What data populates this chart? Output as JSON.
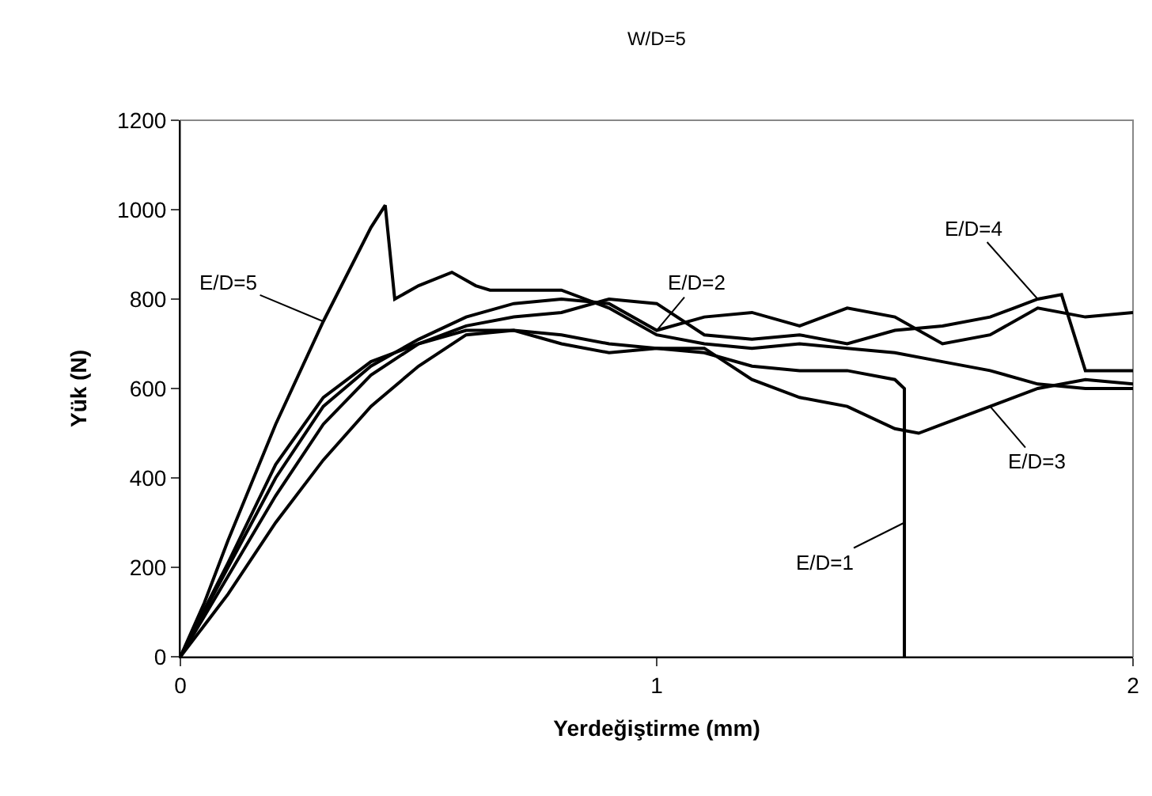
{
  "chart_data": {
    "type": "line",
    "title": "W/D=5",
    "xlabel": "Yerdeğiştirme (mm)",
    "ylabel": "Yük (N)",
    "xlim": [
      0,
      2
    ],
    "xticks": [
      0,
      1,
      2
    ],
    "ylim": [
      0,
      1200
    ],
    "yticks": [
      0,
      200,
      400,
      600,
      800,
      1000,
      1200
    ],
    "grid": false,
    "marker": "none",
    "line_style": "solid",
    "series": [
      {
        "color": "#000000",
        "x": [
          0,
          0.05,
          0.1,
          0.2,
          0.3,
          0.4,
          0.43,
          0.45,
          0.5,
          0.57,
          0.62,
          0.65,
          0.8,
          0.9,
          1.0,
          1.1,
          1.2,
          1.3,
          1.4,
          1.5,
          1.6,
          1.7,
          1.8,
          1.9,
          2.0
        ],
        "values": [
          0,
          120,
          260,
          520,
          750,
          960,
          1010,
          800,
          830,
          860,
          830,
          820,
          820,
          780,
          720,
          700,
          690,
          700,
          690,
          680,
          660,
          640,
          610,
          600,
          600
        ]
      },
      {
        "color": "#000000",
        "x": [
          0,
          0.1,
          0.2,
          0.3,
          0.4,
          0.5,
          0.6,
          0.7,
          0.8,
          0.9,
          1.0,
          1.1,
          1.2,
          1.3,
          1.4,
          1.5,
          1.6,
          1.7,
          1.8,
          1.9,
          2.0
        ],
        "values": [
          0,
          200,
          400,
          560,
          650,
          710,
          760,
          790,
          800,
          790,
          730,
          760,
          770,
          740,
          780,
          760,
          700,
          720,
          780,
          760,
          770
        ]
      },
      {
        "color": "#000000",
        "x": [
          0,
          0.1,
          0.2,
          0.3,
          0.4,
          0.5,
          0.6,
          0.7,
          0.8,
          0.9,
          1.0,
          1.1,
          1.2,
          1.3,
          1.4,
          1.5,
          1.6,
          1.7,
          1.75,
          1.8,
          1.85,
          1.9,
          2.0
        ],
        "values": [
          0,
          180,
          360,
          520,
          630,
          700,
          740,
          760,
          770,
          800,
          790,
          720,
          710,
          720,
          700,
          730,
          740,
          760,
          780,
          800,
          810,
          640,
          640
        ]
      },
      {
        "color": "#000000",
        "x": [
          0,
          0.1,
          0.2,
          0.3,
          0.4,
          0.5,
          0.6,
          0.7,
          0.8,
          0.9,
          1.0,
          1.1,
          1.2,
          1.3,
          1.4,
          1.5,
          1.55,
          1.6,
          1.7,
          1.8,
          1.9,
          2.0
        ],
        "values": [
          0,
          140,
          300,
          440,
          560,
          650,
          720,
          730,
          700,
          680,
          690,
          690,
          620,
          580,
          560,
          510,
          500,
          520,
          560,
          600,
          620,
          610
        ]
      },
      {
        "color": "#000000",
        "x": [
          0,
          0.1,
          0.2,
          0.3,
          0.4,
          0.5,
          0.6,
          0.7,
          0.8,
          0.9,
          1.0,
          1.1,
          1.2,
          1.3,
          1.4,
          1.5,
          1.52,
          1.52
        ],
        "values": [
          0,
          210,
          430,
          580,
          660,
          700,
          730,
          730,
          720,
          700,
          690,
          680,
          650,
          640,
          640,
          620,
          600,
          0
        ]
      }
    ],
    "annotations": [
      {
        "text": "E/D=5",
        "x": 0.3,
        "y": 750
      },
      {
        "text": "E/D=2",
        "x": 1.0,
        "y": 730
      },
      {
        "text": "E/D=4",
        "x": 1.8,
        "y": 800
      },
      {
        "text": "E/D=3",
        "x": 1.7,
        "y": 560
      },
      {
        "text": "E/D=1",
        "x": 1.52,
        "y": 300
      }
    ]
  }
}
